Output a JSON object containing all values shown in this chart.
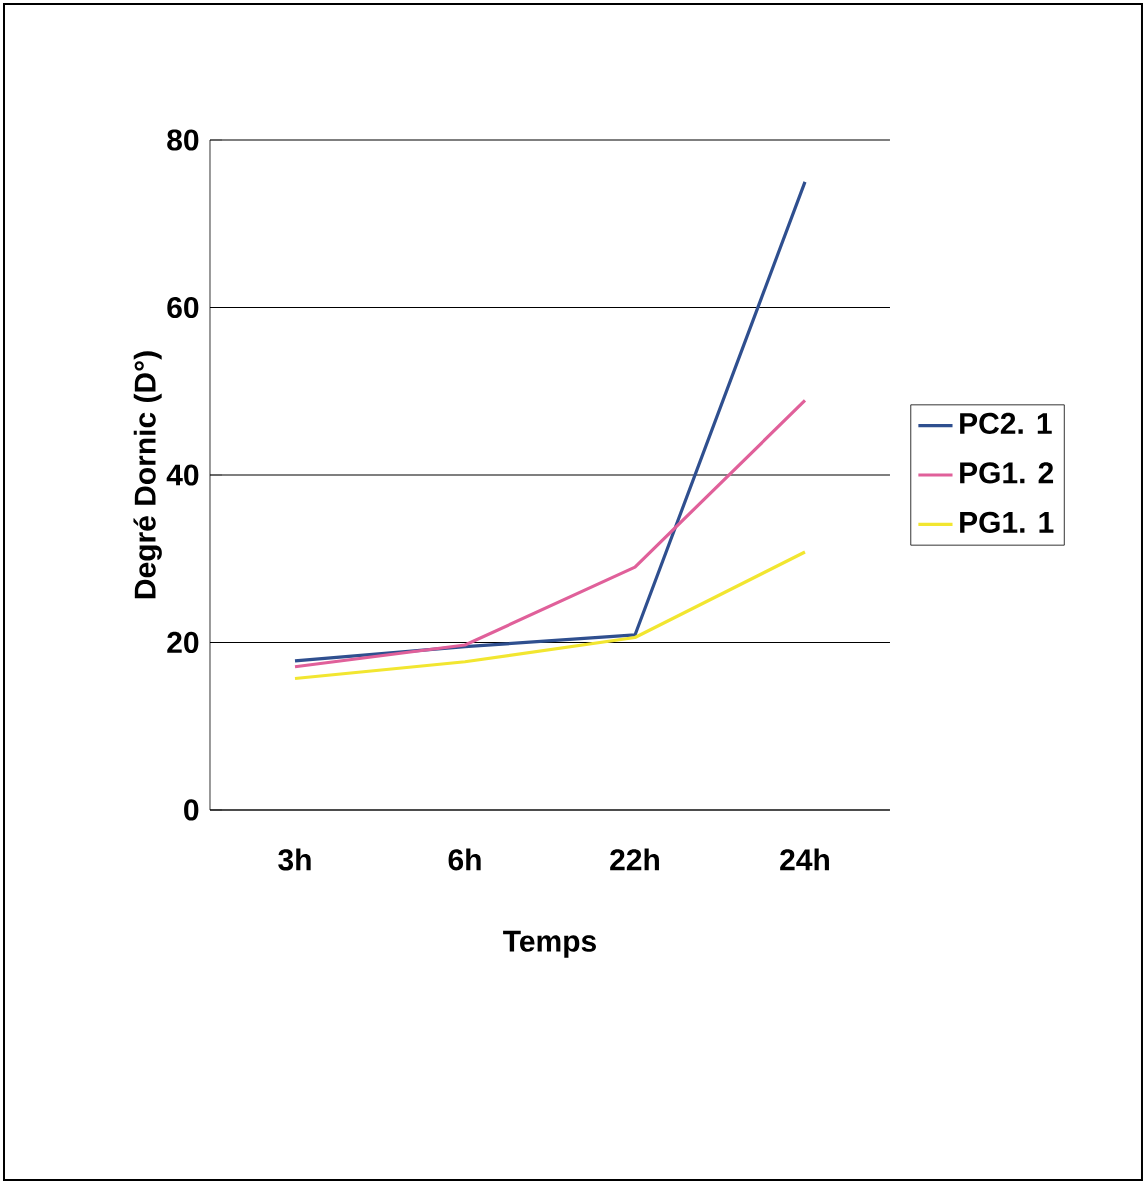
{
  "chart_data": {
    "type": "line",
    "xlabel": "Temps",
    "ylabel": "Degré Dornic (D°)",
    "categories": [
      "3h",
      "6h",
      "22h",
      "24h"
    ],
    "series": [
      {
        "name": "PC2. 1",
        "color": "#2f4f8f",
        "values": [
          17.8,
          19.5,
          20.9,
          75
        ]
      },
      {
        "name": "PG1. 2",
        "color": "#e0609a",
        "values": [
          17.1,
          19.7,
          29,
          48.9
        ]
      },
      {
        "name": "PG1. 1",
        "color": "#f2e630",
        "values": [
          15.7,
          17.7,
          20.6,
          30.8
        ]
      }
    ],
    "ylim": [
      0,
      80
    ],
    "yticks": [
      0,
      20,
      40,
      60,
      80
    ],
    "grid": "y",
    "legend": "right",
    "marker": "none",
    "line_style": "solid"
  }
}
